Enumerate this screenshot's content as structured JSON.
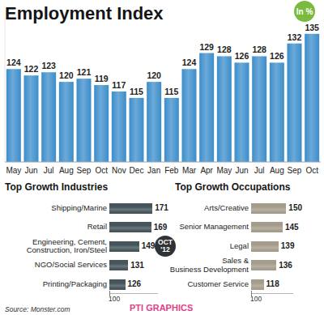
{
  "chart_data": [
    {
      "type": "bar",
      "title": "Employment Index",
      "subtitle": "In %",
      "categories": [
        "May",
        "Jun",
        "Jul",
        "Aug",
        "Sep",
        "Oct",
        "Nov",
        "Dec",
        "Jan",
        "Feb",
        "Mar",
        "Apr",
        "May",
        "Jun",
        "Jul",
        "Aug",
        "Sep",
        "Oct"
      ],
      "values": [
        124,
        122,
        123,
        120,
        121,
        119,
        117,
        115,
        120,
        115,
        124,
        129,
        128,
        126,
        128,
        126,
        132,
        135
      ],
      "color": "#3b8dcb",
      "ylim": [
        95,
        140
      ],
      "tick_labels": "x",
      "data_labels": true
    },
    {
      "type": "bar",
      "orientation": "horizontal",
      "title": "Top Growth Industries",
      "categories": [
        "Shipping/Marine",
        "Retail",
        "Engineering, Cement,\nConstruction, Iron/Steel",
        "NGO/Social Services",
        "Printing/Packaging"
      ],
      "values": [
        171,
        169,
        149,
        131,
        126
      ],
      "color": "#45555b",
      "xlim": [
        100,
        180
      ],
      "xticks": [
        100
      ],
      "data_labels": true
    },
    {
      "type": "bar",
      "orientation": "horizontal",
      "title": "Top Growth Occupations",
      "categories": [
        "Arts/Creative",
        "Senior Management",
        "Legal",
        "Sales &\nBusiness Development",
        "Customer Service"
      ],
      "values": [
        150,
        145,
        139,
        136,
        118
      ],
      "color": "#a59d8c",
      "xlim": [
        100,
        160
      ],
      "xticks": [
        100
      ],
      "data_labels": true
    }
  ],
  "badge": "OCT '12",
  "source": "Source: Monster.com",
  "credit": "PTI GRAPHICS"
}
